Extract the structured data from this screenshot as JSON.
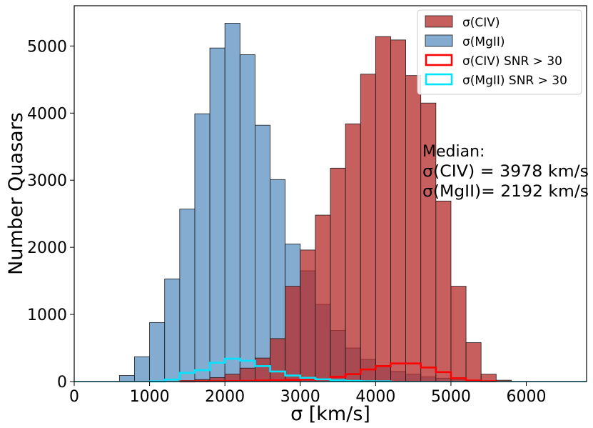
{
  "chart_data": {
    "type": "bar",
    "subtype": "overlaid-histogram",
    "xlabel": "σ [km/s]",
    "ylabel": "Number Quasars",
    "xlim": [
      0,
      6800
    ],
    "ylim": [
      0,
      5600
    ],
    "xticks": [
      0,
      1000,
      2000,
      3000,
      4000,
      5000,
      6000
    ],
    "yticks": [
      0,
      1000,
      2000,
      3000,
      4000,
      5000
    ],
    "bin_width": 200,
    "grid": false,
    "legend_position": "top-right",
    "series": [
      {
        "name": "σ(MgII)",
        "style": "filled",
        "color": "#5b8fc0",
        "bins": [
          {
            "x": 600,
            "value": 90
          },
          {
            "x": 800,
            "value": 370
          },
          {
            "x": 1000,
            "value": 880
          },
          {
            "x": 1200,
            "value": 1530
          },
          {
            "x": 1400,
            "value": 2570
          },
          {
            "x": 1600,
            "value": 3990
          },
          {
            "x": 1800,
            "value": 4970
          },
          {
            "x": 2000,
            "value": 5340
          },
          {
            "x": 2200,
            "value": 4870
          },
          {
            "x": 2400,
            "value": 3820
          },
          {
            "x": 2600,
            "value": 3010
          },
          {
            "x": 2800,
            "value": 2050
          },
          {
            "x": 3000,
            "value": 1650
          },
          {
            "x": 3200,
            "value": 1150
          },
          {
            "x": 3400,
            "value": 760
          },
          {
            "x": 3600,
            "value": 500
          },
          {
            "x": 3800,
            "value": 330
          },
          {
            "x": 4000,
            "value": 240
          },
          {
            "x": 4200,
            "value": 150
          },
          {
            "x": 4400,
            "value": 110
          },
          {
            "x": 4600,
            "value": 70
          },
          {
            "x": 4800,
            "value": 50
          },
          {
            "x": 5000,
            "value": 25
          },
          {
            "x": 5200,
            "value": 15
          },
          {
            "x": 5400,
            "value": 10
          }
        ]
      },
      {
        "name": "σ(CIV)",
        "style": "filled",
        "color": "#b52a2a",
        "bins": [
          {
            "x": 1400,
            "value": 15
          },
          {
            "x": 1600,
            "value": 30
          },
          {
            "x": 1800,
            "value": 60
          },
          {
            "x": 2000,
            "value": 110
          },
          {
            "x": 2200,
            "value": 200
          },
          {
            "x": 2400,
            "value": 350
          },
          {
            "x": 2600,
            "value": 640
          },
          {
            "x": 2800,
            "value": 1420
          },
          {
            "x": 3000,
            "value": 1960
          },
          {
            "x": 3200,
            "value": 2480
          },
          {
            "x": 3400,
            "value": 3180
          },
          {
            "x": 3600,
            "value": 3840
          },
          {
            "x": 3800,
            "value": 4580
          },
          {
            "x": 4000,
            "value": 5140
          },
          {
            "x": 4200,
            "value": 5090
          },
          {
            "x": 4400,
            "value": 4560
          },
          {
            "x": 4600,
            "value": 4150
          },
          {
            "x": 4800,
            "value": 2690
          },
          {
            "x": 5000,
            "value": 1420
          },
          {
            "x": 5200,
            "value": 580
          },
          {
            "x": 5400,
            "value": 110
          },
          {
            "x": 5600,
            "value": 20
          }
        ]
      },
      {
        "name": "σ(CIV) SNR > 30",
        "style": "step",
        "color": "#ff0000",
        "bins": [
          {
            "x": 1400,
            "value": 2
          },
          {
            "x": 1600,
            "value": 3
          },
          {
            "x": 1800,
            "value": 5
          },
          {
            "x": 2000,
            "value": 8
          },
          {
            "x": 2200,
            "value": 10
          },
          {
            "x": 2400,
            "value": 15
          },
          {
            "x": 2600,
            "value": 20
          },
          {
            "x": 2800,
            "value": 25
          },
          {
            "x": 3000,
            "value": 30
          },
          {
            "x": 3200,
            "value": 40
          },
          {
            "x": 3400,
            "value": 70
          },
          {
            "x": 3600,
            "value": 110
          },
          {
            "x": 3800,
            "value": 180
          },
          {
            "x": 4000,
            "value": 230
          },
          {
            "x": 4200,
            "value": 270
          },
          {
            "x": 4400,
            "value": 270
          },
          {
            "x": 4600,
            "value": 210
          },
          {
            "x": 4800,
            "value": 140
          },
          {
            "x": 5000,
            "value": 50
          },
          {
            "x": 5200,
            "value": 15
          },
          {
            "x": 5400,
            "value": 5
          }
        ]
      },
      {
        "name": "σ(MgII) SNR > 30",
        "style": "step",
        "color": "#00e5ff",
        "bins": [
          {
            "x": 1000,
            "value": 2
          },
          {
            "x": 1200,
            "value": 30
          },
          {
            "x": 1400,
            "value": 130
          },
          {
            "x": 1600,
            "value": 170
          },
          {
            "x": 1800,
            "value": 280
          },
          {
            "x": 2000,
            "value": 340
          },
          {
            "x": 2200,
            "value": 310
          },
          {
            "x": 2400,
            "value": 230
          },
          {
            "x": 2600,
            "value": 150
          },
          {
            "x": 2800,
            "value": 90
          },
          {
            "x": 3000,
            "value": 55
          },
          {
            "x": 3200,
            "value": 35
          },
          {
            "x": 3400,
            "value": 20
          },
          {
            "x": 3600,
            "value": 10
          },
          {
            "x": 3800,
            "value": 5
          },
          {
            "x": 4000,
            "value": 3
          }
        ]
      }
    ],
    "legend_order": [
      1,
      0,
      2,
      3
    ],
    "annotation": {
      "line1": "Median:",
      "line2": "σ(CIV) = 3978 km/s",
      "line3": "σ(MgII)= 2192 km/s"
    }
  }
}
